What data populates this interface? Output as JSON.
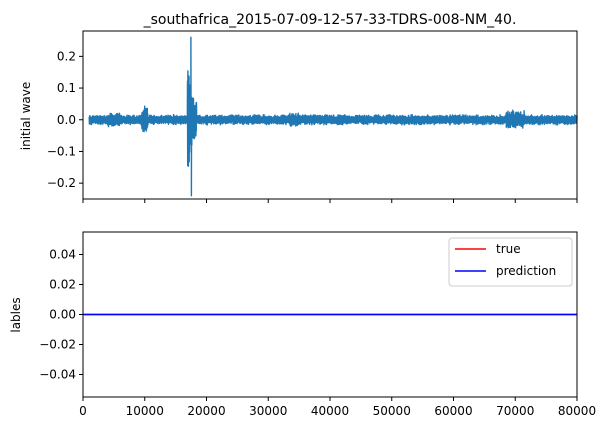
{
  "chart_data": [
    {
      "type": "line",
      "title": "_southafrica_2015-07-09-12-57-33-TDRS-008-NM_40.",
      "xlabel": "",
      "ylabel": "initial wave",
      "xlim": [
        0,
        80000
      ],
      "ylim": [
        -0.25,
        0.28
      ],
      "yticks": [
        0.2,
        0.1,
        0.0,
        -0.1,
        -0.2
      ],
      "ytick_labels": [
        "0.2",
        "0.1",
        "0.0",
        "−0.1",
        "−0.2"
      ],
      "xticks": [
        0,
        10000,
        20000,
        30000,
        40000,
        50000,
        60000,
        70000,
        80000
      ],
      "xtick_labels_visible": false,
      "grid": false,
      "series": [
        {
          "color": "#1f77b4",
          "x_range": [
            1000,
            80000
          ],
          "noise_amplitude": 0.012,
          "burst_x": [
            16900,
            18400
          ],
          "peak_max": 0.26,
          "peak_min": -0.24,
          "note_points": [
            [
              5000,
              0.02
            ],
            [
              10000,
              0.045
            ],
            [
              17500,
              0.26
            ],
            [
              17600,
              -0.24
            ],
            [
              34000,
              -0.02
            ],
            [
              70000,
              0.035
            ]
          ]
        }
      ]
    },
    {
      "type": "line",
      "title": "",
      "xlabel": "",
      "ylabel": "lables",
      "xlim": [
        0,
        80000
      ],
      "ylim": [
        -0.055,
        0.055
      ],
      "yticks": [
        0.04,
        0.02,
        0.0,
        -0.02,
        -0.04
      ],
      "ytick_labels": [
        "0.04",
        "0.02",
        "0.00",
        "−0.02",
        "−0.04"
      ],
      "xticks": [
        0,
        10000,
        20000,
        30000,
        40000,
        50000,
        60000,
        70000,
        80000
      ],
      "xtick_labels": [
        "0",
        "10000",
        "20000",
        "30000",
        "40000",
        "50000",
        "60000",
        "70000",
        "80000"
      ],
      "grid": false,
      "legend_position": "top-right",
      "series": [
        {
          "name": "true",
          "color": "#ff0000",
          "x": [
            0,
            80000
          ],
          "y": [
            0,
            0
          ]
        },
        {
          "name": "prediction",
          "color": "#0000ff",
          "x": [
            0,
            80000
          ],
          "y": [
            0,
            0
          ]
        }
      ]
    }
  ]
}
